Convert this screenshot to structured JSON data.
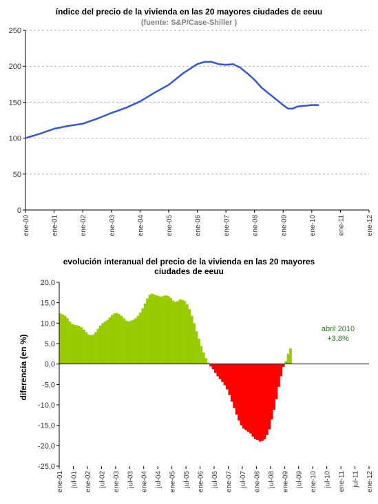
{
  "chart_data": [
    {
      "type": "line",
      "title": "índice del precio de la vivienda en las 20 mayores ciudades de eeuu",
      "subtitle": "(fuente:  S&P/Case-Shiller )",
      "xlabel": "",
      "ylabel": "",
      "ylim": [
        0,
        250
      ],
      "yticks": [
        "0",
        "50",
        "100",
        "150",
        "200",
        "250"
      ],
      "xticks": [
        "ene-00",
        "ene-01",
        "ene-02",
        "ene-03",
        "ene-04",
        "ene-05",
        "ene-06",
        "ene-07",
        "ene-08",
        "ene-09",
        "ene-10",
        "ene-11",
        "ene-12"
      ],
      "xlim": [
        2000.0,
        2012.0
      ],
      "grid": true,
      "color": "#3355dd",
      "x": [
        2000.0,
        2000.5,
        2001.0,
        2001.5,
        2002.0,
        2002.5,
        2003.0,
        2003.5,
        2004.0,
        2004.5,
        2005.0,
        2005.5,
        2006.0,
        2006.25,
        2006.5,
        2006.75,
        2007.0,
        2007.25,
        2007.5,
        2007.75,
        2008.0,
        2008.25,
        2008.5,
        2008.75,
        2009.0,
        2009.17,
        2009.33,
        2009.5,
        2009.75,
        2010.0,
        2010.25
      ],
      "y": [
        100,
        106,
        113,
        117,
        120,
        127,
        135,
        142,
        151,
        163,
        174,
        190,
        203,
        206,
        206,
        203,
        202,
        203,
        198,
        190,
        181,
        170,
        162,
        154,
        146,
        141,
        141,
        144,
        145,
        146,
        146
      ]
    },
    {
      "type": "bar",
      "title": "evolución interanual del precio de la vivienda en las 20 mayores ciudades de eeuu",
      "title_line1": "evolución interanual del precio de la vivienda en las 20 mayores",
      "title_line2": "ciudades de eeuu",
      "xlabel": "",
      "ylabel": "diferencia (en %)",
      "ylim": [
        -25,
        20
      ],
      "yticks": [
        "20,0",
        "15,0",
        "10,0",
        "5,0",
        "0,0",
        "-5,0",
        "-10,0",
        "-15,0",
        "-20,0",
        "-25,0"
      ],
      "xticks": [
        "ene-01",
        "jul-01",
        "ene-02",
        "jul-02",
        "ene-03",
        "jul-03",
        "ene-04",
        "jul-04",
        "ene-05",
        "jul-05",
        "ene-06",
        "jul-06",
        "ene-07",
        "jul-07",
        "ene-08",
        "jul-08",
        "ene-09",
        "jul-09",
        "ene-10",
        "jul-10",
        "ene-11",
        "jul-11",
        "ene-12"
      ],
      "positive_color": "#99cc00",
      "negative_color": "#ff0000",
      "start_month": "ene-01",
      "annotation": {
        "line1": "abril 2010",
        "line2": "+3,8%"
      },
      "values": [
        12.4,
        12.1,
        11.8,
        11.2,
        10.4,
        9.8,
        9.6,
        9.5,
        9.3,
        9.0,
        8.4,
        7.8,
        7.2,
        7.0,
        7.2,
        7.8,
        8.6,
        9.4,
        10.0,
        10.4,
        10.8,
        11.4,
        12.0,
        12.4,
        12.5,
        12.2,
        11.8,
        11.2,
        10.6,
        10.4,
        10.6,
        10.8,
        11.2,
        11.8,
        12.6,
        13.6,
        14.8,
        16.0,
        17.0,
        17.2,
        17.0,
        16.8,
        16.6,
        16.5,
        16.7,
        16.8,
        16.6,
        16.2,
        15.5,
        15.2,
        15.4,
        15.8,
        15.7,
        15.4,
        14.6,
        13.4,
        11.8,
        10.0,
        8.0,
        6.2,
        4.4,
        2.8,
        1.4,
        0.3,
        -0.6,
        -1.3,
        -2.2,
        -3.0,
        -3.7,
        -4.4,
        -5.2,
        -6.2,
        -7.6,
        -9.2,
        -10.8,
        -12.4,
        -13.8,
        -15.0,
        -15.8,
        -16.2,
        -16.6,
        -17.0,
        -17.8,
        -18.4,
        -18.6,
        -19.0,
        -18.8,
        -18.4,
        -17.4,
        -16.0,
        -13.6,
        -11.2,
        -8.6,
        -5.6,
        -3.0,
        -0.7,
        0.7,
        2.5,
        3.8
      ]
    }
  ]
}
